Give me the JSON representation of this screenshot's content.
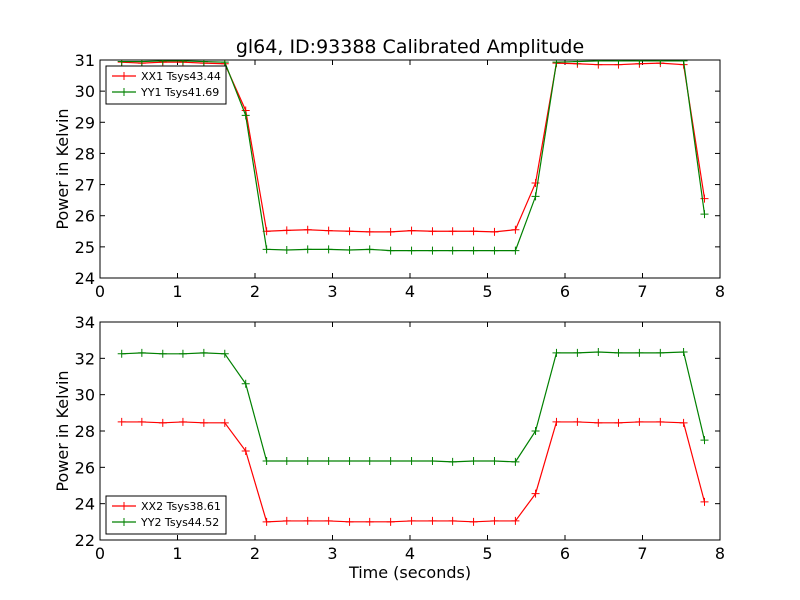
{
  "title": "gl64, ID:93388 Calibrated Amplitude",
  "xlabel": "Time (seconds)",
  "chart_data": [
    {
      "type": "line",
      "ylabel": "Power in Kelvin",
      "xlim": [
        0,
        8
      ],
      "ylim": [
        24,
        31
      ],
      "xticks": [
        0,
        1,
        2,
        3,
        4,
        5,
        6,
        7,
        8
      ],
      "yticks": [
        24,
        25,
        26,
        27,
        28,
        29,
        30,
        31
      ],
      "legend_position": "upper-left",
      "series": [
        {
          "name": "XX1 Tsys43.44",
          "color": "#ff0000",
          "x": [
            0.28,
            0.54,
            0.81,
            1.07,
            1.34,
            1.61,
            1.88,
            2.15,
            2.41,
            2.68,
            2.95,
            3.22,
            3.48,
            3.75,
            4.02,
            4.29,
            4.55,
            4.82,
            5.09,
            5.36,
            5.62,
            5.89,
            6.16,
            6.43,
            6.69,
            6.96,
            7.23,
            7.53,
            7.8
          ],
          "y": [
            30.93,
            30.9,
            30.93,
            30.93,
            30.9,
            30.88,
            29.38,
            25.5,
            25.53,
            25.55,
            25.52,
            25.5,
            25.48,
            25.48,
            25.52,
            25.5,
            25.5,
            25.5,
            25.48,
            25.55,
            27.05,
            30.9,
            30.88,
            30.85,
            30.85,
            30.88,
            30.9,
            30.85,
            26.55
          ]
        },
        {
          "name": "YY1 Tsys41.69",
          "color": "#008000",
          "x": [
            0.28,
            0.54,
            0.81,
            1.07,
            1.34,
            1.61,
            1.88,
            2.15,
            2.41,
            2.68,
            2.95,
            3.22,
            3.48,
            3.75,
            4.02,
            4.29,
            4.55,
            4.82,
            5.09,
            5.36,
            5.62,
            5.89,
            6.16,
            6.43,
            6.69,
            6.96,
            7.23,
            7.53,
            7.8
          ],
          "y": [
            30.95,
            30.95,
            30.97,
            30.97,
            30.95,
            30.93,
            29.22,
            24.92,
            24.9,
            24.92,
            24.92,
            24.9,
            24.92,
            24.88,
            24.88,
            24.88,
            24.88,
            24.88,
            24.88,
            24.88,
            26.62,
            30.93,
            30.95,
            30.97,
            30.97,
            30.97,
            30.97,
            30.97,
            26.05
          ]
        }
      ]
    },
    {
      "type": "line",
      "ylabel": "Power in Kelvin",
      "xlim": [
        0,
        8
      ],
      "ylim": [
        22,
        34
      ],
      "xticks": [
        0,
        1,
        2,
        3,
        4,
        5,
        6,
        7,
        8
      ],
      "yticks": [
        22,
        24,
        26,
        28,
        30,
        32,
        34
      ],
      "legend_position": "lower-left",
      "series": [
        {
          "name": "XX2 Tsys38.61",
          "color": "#ff0000",
          "x": [
            0.28,
            0.54,
            0.81,
            1.07,
            1.34,
            1.61,
            1.88,
            2.15,
            2.41,
            2.68,
            2.95,
            3.22,
            3.48,
            3.75,
            4.02,
            4.29,
            4.55,
            4.82,
            5.09,
            5.36,
            5.62,
            5.89,
            6.16,
            6.43,
            6.69,
            6.96,
            7.23,
            7.53,
            7.8
          ],
          "y": [
            28.5,
            28.5,
            28.45,
            28.5,
            28.45,
            28.45,
            26.9,
            23.0,
            23.05,
            23.05,
            23.05,
            23.0,
            23.0,
            23.0,
            23.05,
            23.05,
            23.05,
            23.0,
            23.05,
            23.05,
            24.55,
            28.5,
            28.5,
            28.45,
            28.45,
            28.5,
            28.5,
            28.45,
            24.1
          ]
        },
        {
          "name": "YY2 Tsys44.52",
          "color": "#008000",
          "x": [
            0.28,
            0.54,
            0.81,
            1.07,
            1.34,
            1.61,
            1.88,
            2.15,
            2.41,
            2.68,
            2.95,
            3.22,
            3.48,
            3.75,
            4.02,
            4.29,
            4.55,
            4.82,
            5.09,
            5.36,
            5.62,
            5.89,
            6.16,
            6.43,
            6.69,
            6.96,
            7.23,
            7.53,
            7.8
          ],
          "y": [
            32.25,
            32.3,
            32.25,
            32.25,
            32.3,
            32.25,
            30.6,
            26.35,
            26.35,
            26.35,
            26.35,
            26.35,
            26.35,
            26.35,
            26.35,
            26.35,
            26.3,
            26.35,
            26.35,
            26.3,
            28.0,
            32.3,
            32.3,
            32.35,
            32.3,
            32.3,
            32.3,
            32.35,
            27.5
          ]
        }
      ]
    }
  ]
}
